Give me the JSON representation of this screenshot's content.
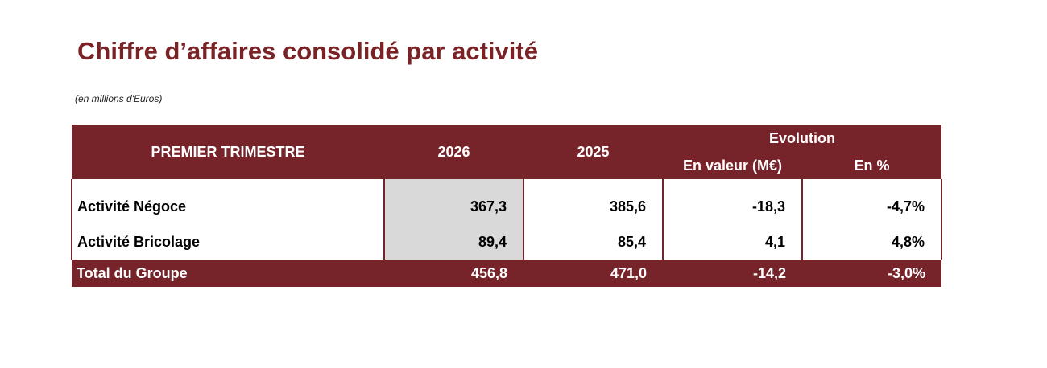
{
  "title": "Chiffre d’affaires consolidé par activité",
  "unit_note": "(en millions d'Euros)",
  "table": {
    "header": {
      "period": "PREMIER TRIMESTRE",
      "year_current": "2026",
      "year_previous": "2025",
      "evolution": "Evolution",
      "evo_value": "En valeur (M€)",
      "evo_pct": "En %"
    },
    "rows": [
      {
        "label": "Activité Négoce",
        "v2026": "367,3",
        "v2025": "385,6",
        "delta": "-18,3",
        "pct": "-4,7%"
      },
      {
        "label": "Activité Bricolage",
        "v2026": "89,4",
        "v2025": "85,4",
        "delta": "4,1",
        "pct": "4,8%"
      }
    ],
    "total": {
      "label": "Total du Groupe",
      "v2026": "456,8",
      "v2025": "471,0",
      "delta": "-14,2",
      "pct": "-3,0%"
    }
  },
  "colors": {
    "accent": "#76242a",
    "title": "#7a2327",
    "highlight": "#d9d9d9"
  }
}
